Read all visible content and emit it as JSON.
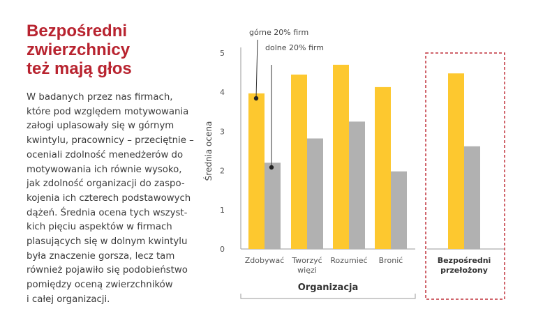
{
  "title_lines": [
    "Bezpośredni",
    "zwierzchnicy",
    "też mają głos"
  ],
  "body_lines": [
    "W badanych przez nas firmach,",
    "które pod względem motywowania",
    "załogi uplasowały się w górnym",
    "kwintylu, pracownicy – przeciętnie –",
    "oceniali zdolność menedżerów do",
    "motywowania ich równie wysoko,",
    "jak zdolność organizacji do zaspo-",
    "kojenia ich czterech podstawowych",
    "dążeń. Średnia ocena tych wszyst-",
    "kich pięciu aspektów w firmach",
    "plasujących się w dolnym kwintylu",
    "była znaczenie gorsza, lecz tam",
    "również pojawiło się podobieństwo",
    "pomiędzy oceną zwierzchników",
    "i całej organizacji."
  ],
  "colors": {
    "title": "#b8232f",
    "top20": "#fdc82f",
    "bottom20": "#b1b1b1",
    "dashed_box": "#c0323c",
    "text": "#3a3a3a"
  },
  "chart_data": {
    "type": "bar",
    "categories": [
      "Zdobywać",
      "Tworzyć więzi",
      "Rozumieć",
      "Bronić",
      "Bezpośredni przełożony"
    ],
    "category_label_lines": [
      [
        "Zdobywać"
      ],
      [
        "Tworzyć",
        "więzi"
      ],
      [
        "Rozumieć"
      ],
      [
        "Bronić"
      ],
      [
        "Bezpośredni",
        "przełożony"
      ]
    ],
    "series": [
      {
        "name": "górne 20% firm",
        "values": [
          3.97,
          4.45,
          4.7,
          4.13,
          4.48
        ]
      },
      {
        "name": "dolne 20% firm",
        "values": [
          2.2,
          2.82,
          3.25,
          1.98,
          2.62
        ]
      }
    ],
    "ylabel": "Średnia ocena",
    "ylim": [
      0,
      5
    ],
    "yticks": [
      "0",
      "1",
      "2",
      "3",
      "4",
      "5"
    ],
    "group_label": "Organizacja",
    "group_categories": 4,
    "highlighted_category": "Bezpośredni przełożony",
    "legend_placement": "annotations on first category",
    "grid": false
  }
}
